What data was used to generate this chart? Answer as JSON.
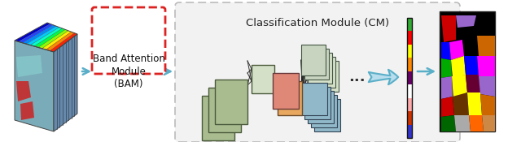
{
  "fig_width": 6.4,
  "fig_height": 1.75,
  "dpi": 100,
  "bg_color": "#ffffff",
  "title_text": "Classification Module (CM)",
  "bam_text": "Band Attention\nModule\n(BAM)",
  "bam_box_color": "#ffffff",
  "bam_border_color": "#dd2222",
  "arrow_color": "#5aafc8",
  "cm_box_color": "#f2f2f2",
  "cm_border_color": "#bbbbbb",
  "green_color": "#a8bc90",
  "green_light_color": "#d4e0c8",
  "pink_color": "#e08878",
  "orange_color": "#e8a860",
  "teal_top_color": "#c8d4c0",
  "teal_bot_color": "#90b8c8",
  "bar_colors": [
    "#33aa33",
    "#ff0000",
    "#ffff00",
    "#ff8800",
    "#660066",
    "#ffffff",
    "#ffaaaa",
    "#cc3300",
    "#3333cc"
  ],
  "dots_text": "...",
  "cube_rainbow": [
    "#0000cc",
    "#2244ff",
    "#0088ff",
    "#00ccff",
    "#00ffcc",
    "#00ff44",
    "#88ff00",
    "#ffee00",
    "#ff8800",
    "#ff2200"
  ]
}
